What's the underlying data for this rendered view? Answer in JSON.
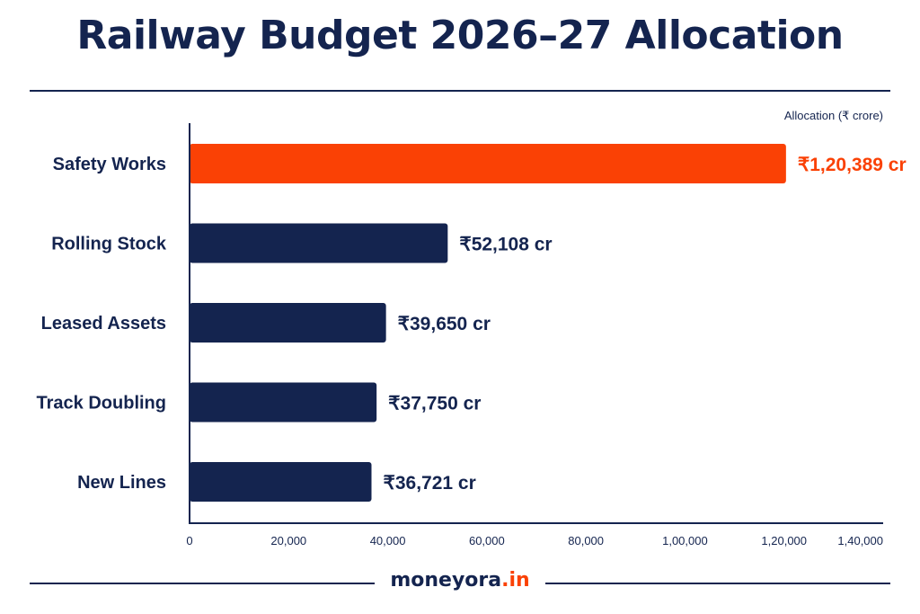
{
  "page": {
    "title": "Railway Budget 2026–27 Allocation",
    "brand_name": "moneyora",
    "brand_tld": ".in",
    "brand_color": "#14244f",
    "accent_color": "#fa4105"
  },
  "chart_data": {
    "type": "bar",
    "orientation": "horizontal",
    "title": "Railway Budget 2026–27 Allocation",
    "unit_label": "Allocation (₹ crore)",
    "xlim": [
      0,
      140000
    ],
    "x_ticks": [
      0,
      20000,
      40000,
      60000,
      80000,
      100000,
      120000,
      140000
    ],
    "x_tick_labels": [
      "0",
      "20,000",
      "40,000",
      "60,000",
      "80,000",
      "1,00,000",
      "1,20,000",
      "1,40,000"
    ],
    "grid": false,
    "categories": [
      "Safety Works",
      "Rolling Stock",
      "Leased Assets",
      "Track Doubling",
      "New Lines"
    ],
    "values": [
      120389,
      52108,
      39650,
      37750,
      36721
    ],
    "data_labels": [
      "₹1,20,389 cr",
      "₹52,108 cr",
      "₹39,650 cr",
      "₹37,750 cr",
      "₹36,721 cr"
    ],
    "highlight_index": 0,
    "bar_color": "#14244f",
    "highlight_color": "#fa4105"
  }
}
